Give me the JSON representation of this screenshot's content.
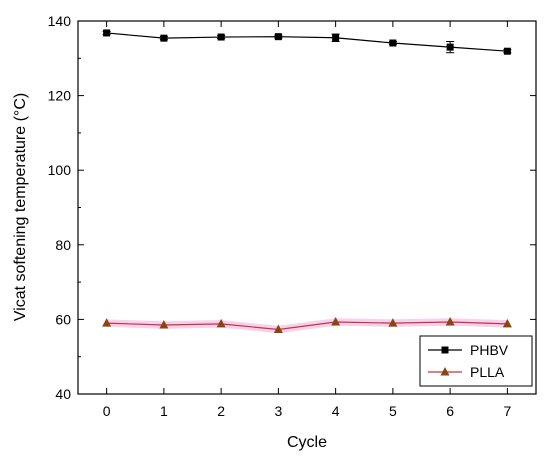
{
  "chart_data": {
    "type": "line",
    "xlabel": "Cycle",
    "ylabel": "Vicat softening temperature (°C)",
    "xlim": [
      -0.5,
      7.5
    ],
    "ylim": [
      40,
      140
    ],
    "x_ticks": [
      0,
      1,
      2,
      3,
      4,
      5,
      6,
      7
    ],
    "y_ticks": [
      40,
      60,
      80,
      100,
      120,
      140
    ],
    "legend_position": "bottom-right",
    "grid": false,
    "x": [
      0,
      1,
      2,
      3,
      4,
      5,
      6,
      7
    ],
    "series": [
      {
        "name": "PHBV",
        "marker": "square",
        "color": "#000000",
        "values": [
          136.8,
          135.4,
          135.7,
          135.8,
          135.5,
          134.1,
          133.0,
          131.9
        ],
        "error": [
          0.4,
          0.4,
          0.4,
          0.4,
          1.0,
          0.4,
          1.5,
          0.4
        ]
      },
      {
        "name": "PLLA",
        "marker": "triangle",
        "color": "#cc3333",
        "marker_color": "#8b4513",
        "band_color": "#f4c6ec",
        "values": [
          59.0,
          58.5,
          58.8,
          57.3,
          59.3,
          59.0,
          59.3,
          58.8
        ],
        "error": [
          0.6,
          0.6,
          0.6,
          0.6,
          0.6,
          0.6,
          0.6,
          0.6
        ]
      }
    ]
  }
}
